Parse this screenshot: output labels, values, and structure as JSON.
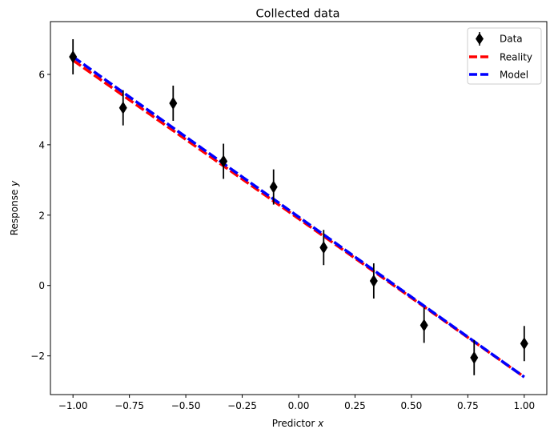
{
  "chart_data": {
    "type": "scatter",
    "title": "Collected data",
    "xlabel": "Predictor",
    "xlabel_var": "x",
    "ylabel": "Response",
    "ylabel_var": "y",
    "xlim": [
      -1.1,
      1.1
    ],
    "ylim": [
      -3.1,
      7.5
    ],
    "xticks": [
      -1.0,
      -0.75,
      -0.5,
      -0.25,
      0.0,
      0.25,
      0.5,
      0.75,
      1.0
    ],
    "xtick_labels": [
      "−1.00",
      "−0.75",
      "−0.50",
      "−0.25",
      "0.00",
      "0.25",
      "0.50",
      "0.75",
      "1.00"
    ],
    "yticks": [
      -2,
      0,
      2,
      4,
      6
    ],
    "ytick_labels": [
      "−2",
      "0",
      "2",
      "4",
      "6"
    ],
    "grid": false,
    "legend_position": "top-right",
    "series": [
      {
        "name": "Data",
        "kind": "errorbar",
        "marker": "diamond",
        "color": "#000000",
        "x": [
          -1.0,
          -0.778,
          -0.556,
          -0.333,
          -0.111,
          0.111,
          0.333,
          0.556,
          0.778,
          1.0
        ],
        "y": [
          6.5,
          5.05,
          5.18,
          3.53,
          2.8,
          1.08,
          0.13,
          -1.13,
          -2.05,
          -1.65
        ],
        "yerr": 0.5
      },
      {
        "name": "Reality",
        "kind": "line",
        "style": "dashed",
        "color": "#ff0000",
        "x": [
          -1.0,
          1.0
        ],
        "y": [
          6.4,
          -2.6
        ]
      },
      {
        "name": "Model",
        "kind": "line",
        "style": "dashed",
        "color": "#0000ff",
        "x": [
          -1.0,
          1.0
        ],
        "y": [
          6.5,
          -2.6
        ]
      }
    ]
  }
}
